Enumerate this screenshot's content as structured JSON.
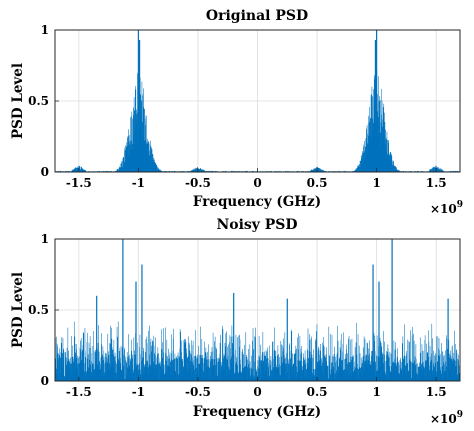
{
  "chart_data": [
    {
      "type": "line",
      "title": "Original PSD",
      "xlabel": "Frequency (GHz)",
      "ylabel": "PSD Level",
      "x_multiplier_label": "×10",
      "x_multiplier_exponent": "9",
      "xlim": [
        -1700000000.0,
        1700000000.0
      ],
      "ylim": [
        0,
        1
      ],
      "xticks": [
        -1.5,
        -1,
        -0.5,
        0,
        0.5,
        1,
        1.5
      ],
      "xtick_labels": [
        "-1.5",
        "-1",
        "-0.5",
        "0",
        "0.5",
        "1",
        "1.5"
      ],
      "yticks": [
        0,
        0.5,
        1
      ],
      "ytick_labels": [
        "0",
        "0.5",
        "1"
      ],
      "grid": true,
      "color": "#0072BD",
      "signal": {
        "bands": [
          {
            "center": -1000000000.0,
            "half_width": 120000000.0,
            "peak": 0.72
          },
          {
            "center": 1000000000.0,
            "half_width": 120000000.0,
            "peak": 0.72
          }
        ],
        "spikes": [
          {
            "x": -1000000000.0,
            "y": 1.0
          },
          {
            "x": 1000000000.0,
            "y": 1.0
          },
          {
            "x": -990000000.0,
            "y": 0.93
          },
          {
            "x": 990000000.0,
            "y": 0.93
          }
        ],
        "bumps": [
          {
            "center": -1500000000.0,
            "y": 0.05
          },
          {
            "center": 1500000000.0,
            "y": 0.05
          },
          {
            "center": -500000000.0,
            "y": 0.04
          },
          {
            "center": 500000000.0,
            "y": 0.04
          }
        ],
        "floor": 0.008
      }
    },
    {
      "type": "line",
      "title": "Noisy PSD",
      "xlabel": "Frequency (GHz)",
      "ylabel": "PSD Level",
      "x_multiplier_label": "×10",
      "x_multiplier_exponent": "9",
      "xlim": [
        -1700000000.0,
        1700000000.0
      ],
      "ylim": [
        0,
        1
      ],
      "xticks": [
        -1.5,
        -1,
        -0.5,
        0,
        0.5,
        1,
        1.5
      ],
      "xtick_labels": [
        "-1.5",
        "-1",
        "-0.5",
        "0",
        "0.5",
        "1",
        "1.5"
      ],
      "yticks": [
        0,
        0.5,
        1
      ],
      "ytick_labels": [
        "0",
        "0.5",
        "1"
      ],
      "grid": true,
      "color": "#0072BD",
      "signal": {
        "noise_base": 0.18,
        "noise_spread": 0.25,
        "spikes": [
          {
            "x": -1130000000.0,
            "y": 1.0
          },
          {
            "x": 1130000000.0,
            "y": 1.0
          },
          {
            "x": -970000000.0,
            "y": 0.82
          },
          {
            "x": 970000000.0,
            "y": 0.82
          },
          {
            "x": -1020000000.0,
            "y": 0.7
          },
          {
            "x": 1020000000.0,
            "y": 0.7
          },
          {
            "x": -200000000.0,
            "y": 0.62
          },
          {
            "x": 250000000.0,
            "y": 0.58
          },
          {
            "x": -1350000000.0,
            "y": 0.6
          },
          {
            "x": 1600000000.0,
            "y": 0.58
          }
        ]
      }
    }
  ]
}
